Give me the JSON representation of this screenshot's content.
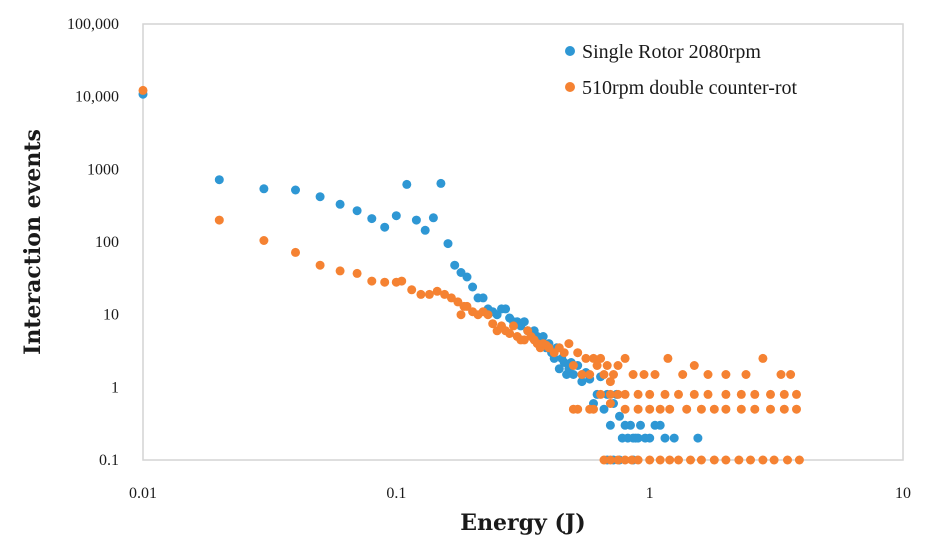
{
  "chart_data": {
    "type": "scatter",
    "title": "",
    "xlabel": "Energy (J)",
    "ylabel": "Interaction events",
    "xscale": "log",
    "yscale": "log",
    "xlim": [
      0.01,
      10
    ],
    "ylim": [
      0.1,
      100000
    ],
    "grid": false,
    "legend_position": "top-right",
    "x_ticks": [
      {
        "value": 0.01,
        "label": "0.01"
      },
      {
        "value": 0.1,
        "label": "0.1"
      },
      {
        "value": 1,
        "label": "1"
      },
      {
        "value": 10,
        "label": "10"
      }
    ],
    "y_ticks": [
      {
        "value": 0.1,
        "label": "0.1"
      },
      {
        "value": 1,
        "label": "1"
      },
      {
        "value": 10,
        "label": "10"
      },
      {
        "value": 100,
        "label": "100"
      },
      {
        "value": 1000,
        "label": "1000"
      },
      {
        "value": 10000,
        "label": "10,000"
      },
      {
        "value": 100000,
        "label": "100,000"
      }
    ],
    "series": [
      {
        "name": "Single Rotor 2080rpm",
        "color": "#2e97d4",
        "points": [
          [
            0.01,
            10800
          ],
          [
            0.02,
            720
          ],
          [
            0.03,
            540
          ],
          [
            0.04,
            520
          ],
          [
            0.05,
            420
          ],
          [
            0.06,
            330
          ],
          [
            0.07,
            270
          ],
          [
            0.08,
            210
          ],
          [
            0.09,
            160
          ],
          [
            0.1,
            230
          ],
          [
            0.11,
            620
          ],
          [
            0.12,
            200
          ],
          [
            0.13,
            145
          ],
          [
            0.14,
            215
          ],
          [
            0.15,
            640
          ],
          [
            0.16,
            95
          ],
          [
            0.17,
            48
          ],
          [
            0.18,
            38
          ],
          [
            0.19,
            33
          ],
          [
            0.2,
            24
          ],
          [
            0.21,
            17
          ],
          [
            0.22,
            17
          ],
          [
            0.23,
            12
          ],
          [
            0.24,
            11
          ],
          [
            0.25,
            10
          ],
          [
            0.26,
            12
          ],
          [
            0.27,
            12
          ],
          [
            0.28,
            9
          ],
          [
            0.29,
            8
          ],
          [
            0.3,
            8
          ],
          [
            0.31,
            7
          ],
          [
            0.32,
            8
          ],
          [
            0.33,
            6
          ],
          [
            0.34,
            5.5
          ],
          [
            0.35,
            6
          ],
          [
            0.36,
            5
          ],
          [
            0.37,
            4
          ],
          [
            0.38,
            5
          ],
          [
            0.39,
            3.5
          ],
          [
            0.4,
            4
          ],
          [
            0.41,
            3
          ],
          [
            0.42,
            2.5
          ],
          [
            0.43,
            3.5
          ],
          [
            0.44,
            1.8
          ],
          [
            0.45,
            2.5
          ],
          [
            0.46,
            2.2
          ],
          [
            0.47,
            1.5
          ],
          [
            0.48,
            1.8
          ],
          [
            0.49,
            2.2
          ],
          [
            0.5,
            1.5
          ],
          [
            0.52,
            2
          ],
          [
            0.54,
            1.2
          ],
          [
            0.56,
            1.6
          ],
          [
            0.58,
            1.3
          ],
          [
            0.6,
            0.6
          ],
          [
            0.62,
            0.8
          ],
          [
            0.64,
            1.4
          ],
          [
            0.66,
            0.5
          ],
          [
            0.68,
            0.8
          ],
          [
            0.7,
            0.3
          ],
          [
            0.72,
            0.6
          ],
          [
            0.74,
            0.8
          ],
          [
            0.76,
            0.4
          ],
          [
            0.78,
            0.2
          ],
          [
            0.8,
            0.3
          ],
          [
            0.82,
            0.2
          ],
          [
            0.84,
            0.3
          ],
          [
            0.86,
            0.2
          ],
          [
            0.88,
            0.2
          ],
          [
            0.9,
            0.2
          ],
          [
            0.92,
            0.3
          ],
          [
            0.96,
            0.2
          ],
          [
            1.0,
            0.2
          ],
          [
            1.05,
            0.3
          ],
          [
            1.1,
            0.3
          ],
          [
            1.15,
            0.2
          ],
          [
            1.25,
            0.2
          ],
          [
            1.55,
            0.2
          ],
          [
            0.68,
            0.1
          ],
          [
            0.72,
            0.1
          ],
          [
            0.76,
            0.1
          ],
          [
            0.86,
            0.1
          ]
        ]
      },
      {
        "name": "510rpm double counter-rot",
        "color": "#f58232",
        "points": [
          [
            0.01,
            12200
          ],
          [
            0.02,
            200
          ],
          [
            0.03,
            105
          ],
          [
            0.04,
            72
          ],
          [
            0.05,
            48
          ],
          [
            0.06,
            40
          ],
          [
            0.07,
            37
          ],
          [
            0.08,
            29
          ],
          [
            0.09,
            28
          ],
          [
            0.1,
            28
          ],
          [
            0.105,
            29
          ],
          [
            0.115,
            22
          ],
          [
            0.125,
            19
          ],
          [
            0.135,
            19
          ],
          [
            0.145,
            21
          ],
          [
            0.155,
            19
          ],
          [
            0.165,
            17
          ],
          [
            0.175,
            15
          ],
          [
            0.18,
            10
          ],
          [
            0.185,
            13
          ],
          [
            0.19,
            13
          ],
          [
            0.2,
            11
          ],
          [
            0.21,
            10
          ],
          [
            0.22,
            11
          ],
          [
            0.23,
            10
          ],
          [
            0.24,
            7.5
          ],
          [
            0.25,
            6
          ],
          [
            0.26,
            7
          ],
          [
            0.27,
            6
          ],
          [
            0.28,
            5.5
          ],
          [
            0.29,
            7
          ],
          [
            0.3,
            5
          ],
          [
            0.31,
            4.5
          ],
          [
            0.32,
            4.5
          ],
          [
            0.33,
            6
          ],
          [
            0.34,
            5
          ],
          [
            0.35,
            4.5
          ],
          [
            0.36,
            4
          ],
          [
            0.37,
            3.5
          ],
          [
            0.38,
            4
          ],
          [
            0.39,
            3.8
          ],
          [
            0.4,
            3.5
          ],
          [
            0.42,
            3
          ],
          [
            0.44,
            3.5
          ],
          [
            0.46,
            3
          ],
          [
            0.48,
            4
          ],
          [
            0.5,
            2
          ],
          [
            0.52,
            3
          ],
          [
            0.54,
            1.5
          ],
          [
            0.56,
            2.5
          ],
          [
            0.58,
            1.5
          ],
          [
            0.6,
            2.5
          ],
          [
            0.62,
            2
          ],
          [
            0.64,
            2.5
          ],
          [
            0.66,
            1.5
          ],
          [
            0.68,
            2
          ],
          [
            0.7,
            1.2
          ],
          [
            0.72,
            1.5
          ],
          [
            0.75,
            2
          ],
          [
            0.8,
            2.5
          ],
          [
            0.86,
            1.5
          ],
          [
            0.95,
            1.5
          ],
          [
            1.05,
            1.5
          ],
          [
            1.18,
            2.5
          ],
          [
            1.35,
            1.5
          ],
          [
            1.5,
            2
          ],
          [
            1.7,
            1.5
          ],
          [
            2.0,
            1.5
          ],
          [
            2.4,
            1.5
          ],
          [
            2.8,
            2.5
          ],
          [
            3.3,
            1.5
          ],
          [
            3.6,
            1.5
          ],
          [
            0.5,
            0.5
          ],
          [
            0.52,
            0.5
          ],
          [
            0.58,
            0.5
          ],
          [
            0.6,
            0.5
          ],
          [
            0.64,
            0.8
          ],
          [
            0.7,
            0.8
          ],
          [
            0.75,
            0.8
          ],
          [
            0.8,
            0.8
          ],
          [
            0.9,
            0.8
          ],
          [
            1.0,
            0.8
          ],
          [
            1.15,
            0.8
          ],
          [
            1.3,
            0.8
          ],
          [
            1.5,
            0.8
          ],
          [
            1.7,
            0.8
          ],
          [
            2.0,
            0.8
          ],
          [
            2.3,
            0.8
          ],
          [
            2.6,
            0.8
          ],
          [
            3.0,
            0.8
          ],
          [
            3.4,
            0.8
          ],
          [
            3.8,
            0.8
          ],
          [
            0.7,
            0.6
          ],
          [
            0.8,
            0.5
          ],
          [
            0.9,
            0.5
          ],
          [
            1.0,
            0.5
          ],
          [
            1.1,
            0.5
          ],
          [
            1.2,
            0.5
          ],
          [
            1.4,
            0.5
          ],
          [
            1.6,
            0.5
          ],
          [
            1.8,
            0.5
          ],
          [
            2.0,
            0.5
          ],
          [
            2.3,
            0.5
          ],
          [
            2.6,
            0.5
          ],
          [
            3.0,
            0.5
          ],
          [
            3.4,
            0.5
          ],
          [
            3.8,
            0.5
          ],
          [
            0.66,
            0.1
          ],
          [
            0.7,
            0.1
          ],
          [
            0.75,
            0.1
          ],
          [
            0.8,
            0.1
          ],
          [
            0.85,
            0.1
          ],
          [
            0.9,
            0.1
          ],
          [
            1.0,
            0.1
          ],
          [
            1.1,
            0.1
          ],
          [
            1.2,
            0.1
          ],
          [
            1.3,
            0.1
          ],
          [
            1.45,
            0.1
          ],
          [
            1.6,
            0.1
          ],
          [
            1.8,
            0.1
          ],
          [
            2.0,
            0.1
          ],
          [
            2.25,
            0.1
          ],
          [
            2.5,
            0.1
          ],
          [
            2.8,
            0.1
          ],
          [
            3.1,
            0.1
          ],
          [
            3.5,
            0.1
          ],
          [
            3.9,
            0.1
          ]
        ]
      }
    ]
  }
}
